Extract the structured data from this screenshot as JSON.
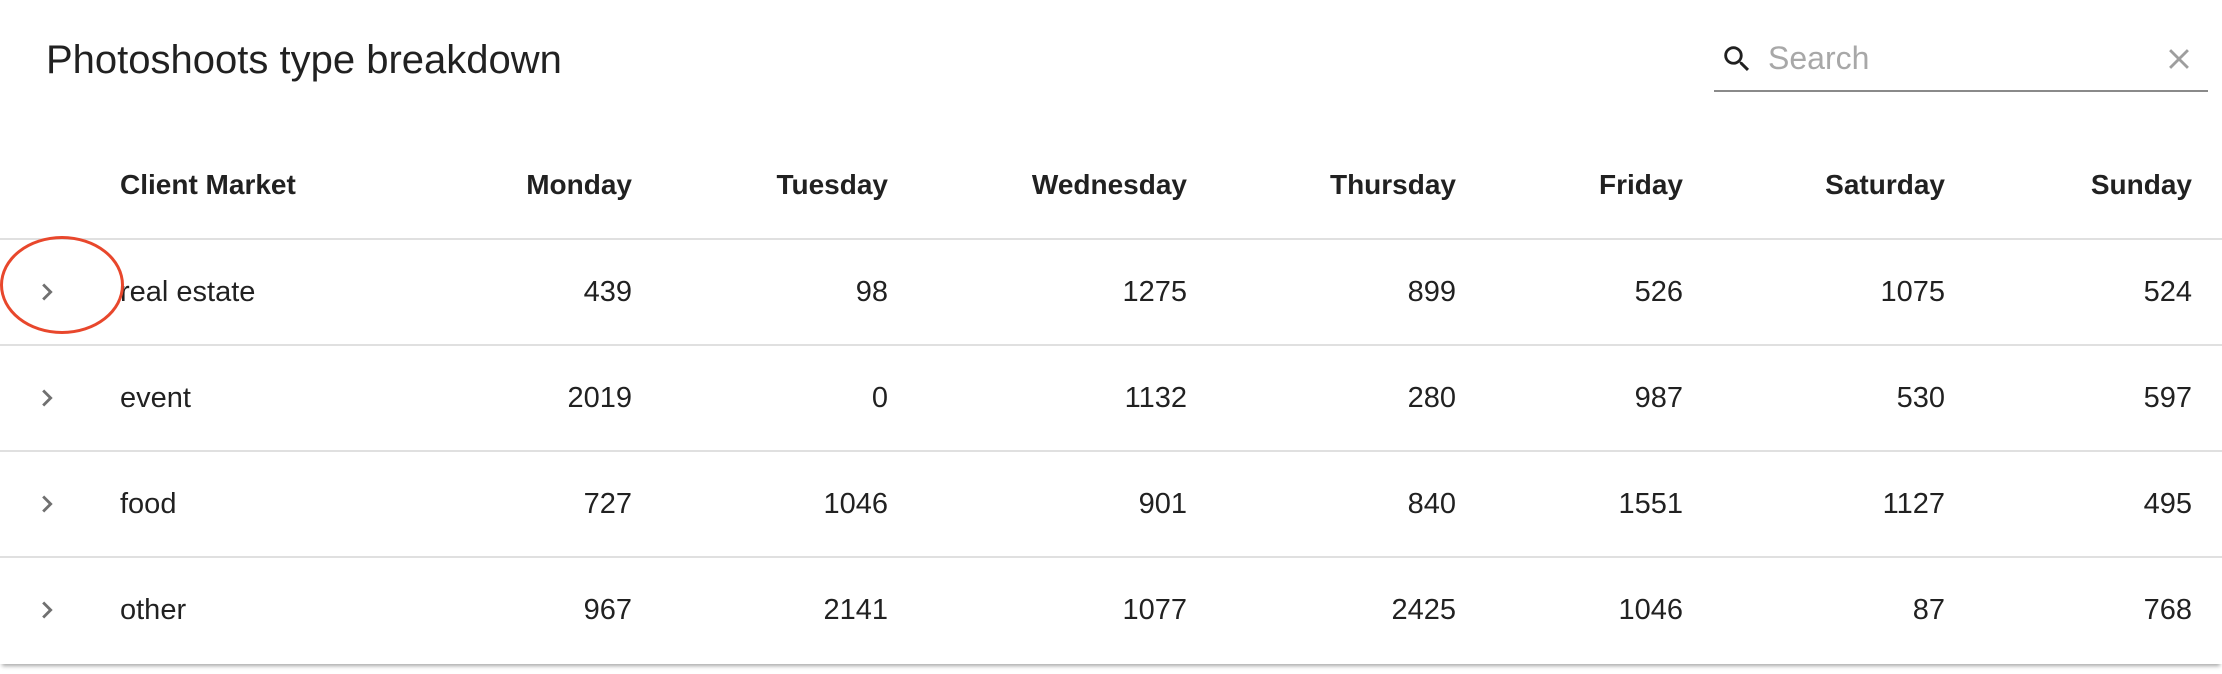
{
  "header": {
    "title": "Photoshoots type breakdown"
  },
  "search": {
    "placeholder": "Search",
    "value": ""
  },
  "table": {
    "columns": [
      "",
      "Client Market",
      "Monday",
      "Tuesday",
      "Wednesday",
      "Thursday",
      "Friday",
      "Saturday",
      "Sunday"
    ],
    "rows": [
      {
        "market": "real estate",
        "values": [
          "439",
          "98",
          "1275",
          "899",
          "526",
          "1075",
          "524"
        ]
      },
      {
        "market": "event",
        "values": [
          "2019",
          "0",
          "1132",
          "280",
          "987",
          "530",
          "597"
        ]
      },
      {
        "market": "food",
        "values": [
          "727",
          "1046",
          "901",
          "840",
          "1551",
          "1127",
          "495"
        ]
      },
      {
        "market": "other",
        "values": [
          "967",
          "2141",
          "1077",
          "2425",
          "1046",
          "87",
          "768"
        ]
      }
    ]
  },
  "annotation": {
    "highlight_color": "#e8472c",
    "highlighted_target": "chevron-right-icon"
  },
  "icons": {
    "search": "search-icon",
    "clear": "close-icon",
    "expand": "chevron-right-icon"
  }
}
